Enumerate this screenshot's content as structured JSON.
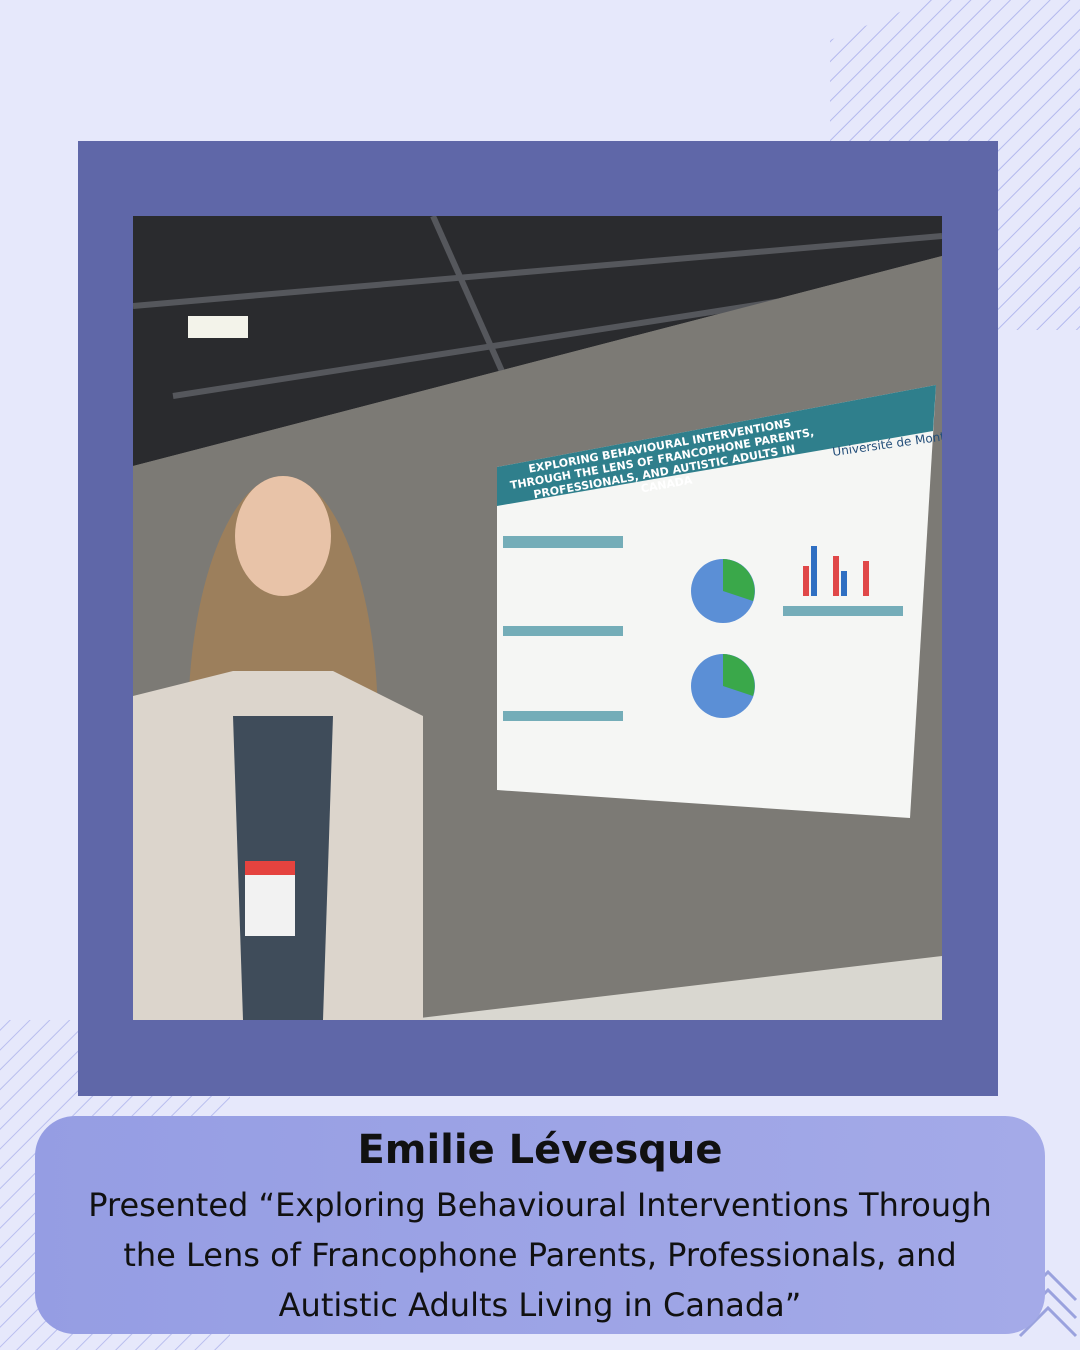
{
  "caption": {
    "name": "Emilie Lévesque",
    "text": "Presented “Exploring Behavioural Interventions Through the Lens of Francophone Parents, Professionals, and Autistic Adults Living in Canada”"
  },
  "photo": {
    "poster_title": "EXPLORING BEHAVIOURAL INTERVENTIONS THROUGH THE LENS OF FRANCOPHONE PARENTS, PROFESSIONALS, AND AUTISTIC ADULTS IN CANADA",
    "university": "Université de Montréal"
  }
}
